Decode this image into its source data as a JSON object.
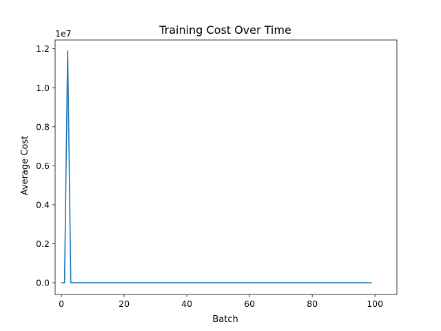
{
  "chart_data": {
    "type": "line",
    "title": "Training Cost Over Time",
    "xlabel": "Batch",
    "ylabel": "Average Cost",
    "y_offset_label": "1e7",
    "xlim": [
      -2,
      107
    ],
    "ylim": [
      -0.06,
      1.245
    ],
    "x_ticks": [
      0,
      20,
      40,
      60,
      80,
      100
    ],
    "y_ticks": [
      0.0,
      0.2,
      0.4,
      0.6,
      0.8,
      1.0,
      1.2
    ],
    "x_tick_labels": [
      "0",
      "20",
      "40",
      "60",
      "80",
      "100"
    ],
    "y_tick_labels": [
      "0.0",
      "0.2",
      "0.4",
      "0.6",
      "0.8",
      "1.0",
      "1.2"
    ],
    "grid": false,
    "line_color": "#1f77b4",
    "series": [
      {
        "x": [
          0,
          1,
          2,
          3,
          4,
          99
        ],
        "y": [
          0.0,
          0.0,
          1.19,
          0.0,
          0.0,
          0.0
        ]
      }
    ]
  }
}
